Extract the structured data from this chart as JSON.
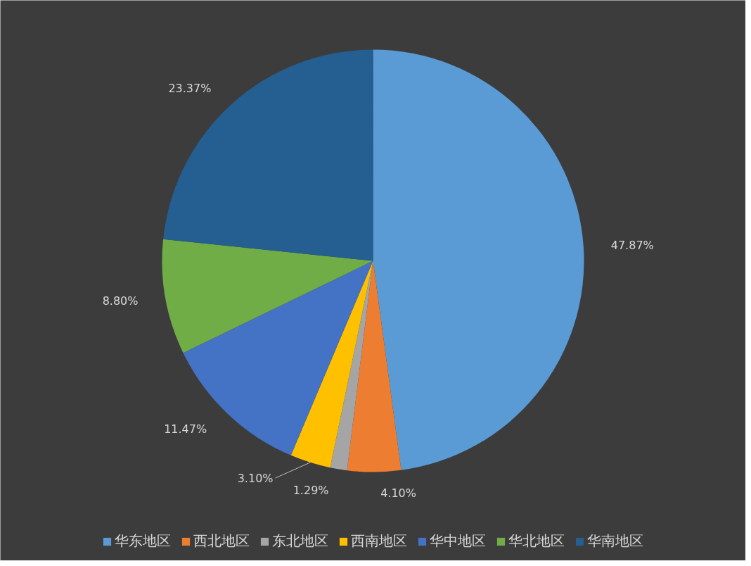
{
  "chart_data": {
    "type": "pie",
    "categories": [
      "华东地区",
      "西北地区",
      "东北地区",
      "西南地区",
      "华中地区",
      "华北地区",
      "华南地区"
    ],
    "values": [
      47.87,
      4.1,
      1.29,
      3.1,
      11.47,
      8.8,
      23.37
    ],
    "colors": [
      "#5b9bd5",
      "#ed7d31",
      "#a5a5a5",
      "#ffc000",
      "#4472c4",
      "#70ad47",
      "#255e91"
    ],
    "value_labels": [
      "47.87%",
      "4.10%",
      "1.29%",
      "3.10%",
      "11.47%",
      "8.80%",
      "23.37%"
    ],
    "legend": "bottom"
  }
}
